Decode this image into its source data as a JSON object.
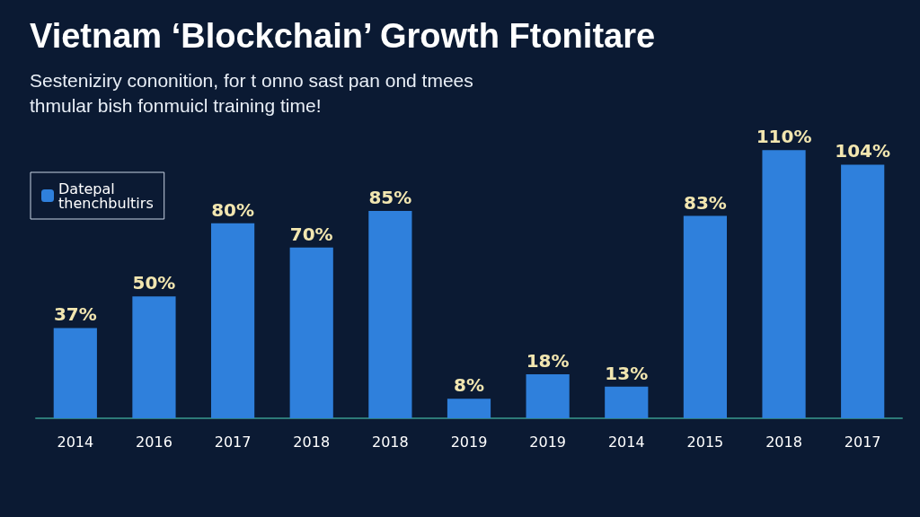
{
  "chart_data": {
    "type": "bar",
    "title": "Vietnam ‘Blockchain’ Growth Ftonitare",
    "subtitle": "Sesteniziry cononition, for t onno sast pan ond tmees thmular bish fonmuicl training time!",
    "categories": [
      "2014",
      "2016",
      "2017",
      "2018",
      "2018",
      "2019",
      "2019",
      "2014",
      "2015",
      "2018",
      "2017"
    ],
    "series": [
      {
        "name": "Datepal thenchbultirs",
        "color": "#2f80dc",
        "values": [
          37,
          50,
          80,
          70,
          85,
          8,
          18,
          13,
          83,
          110,
          104
        ],
        "value_labels": [
          "37%",
          "50%",
          "80%",
          "70%",
          "85%",
          "8%",
          "18%",
          "13%",
          "83%",
          "110%",
          "104%"
        ]
      }
    ],
    "legend": "top left"
  }
}
